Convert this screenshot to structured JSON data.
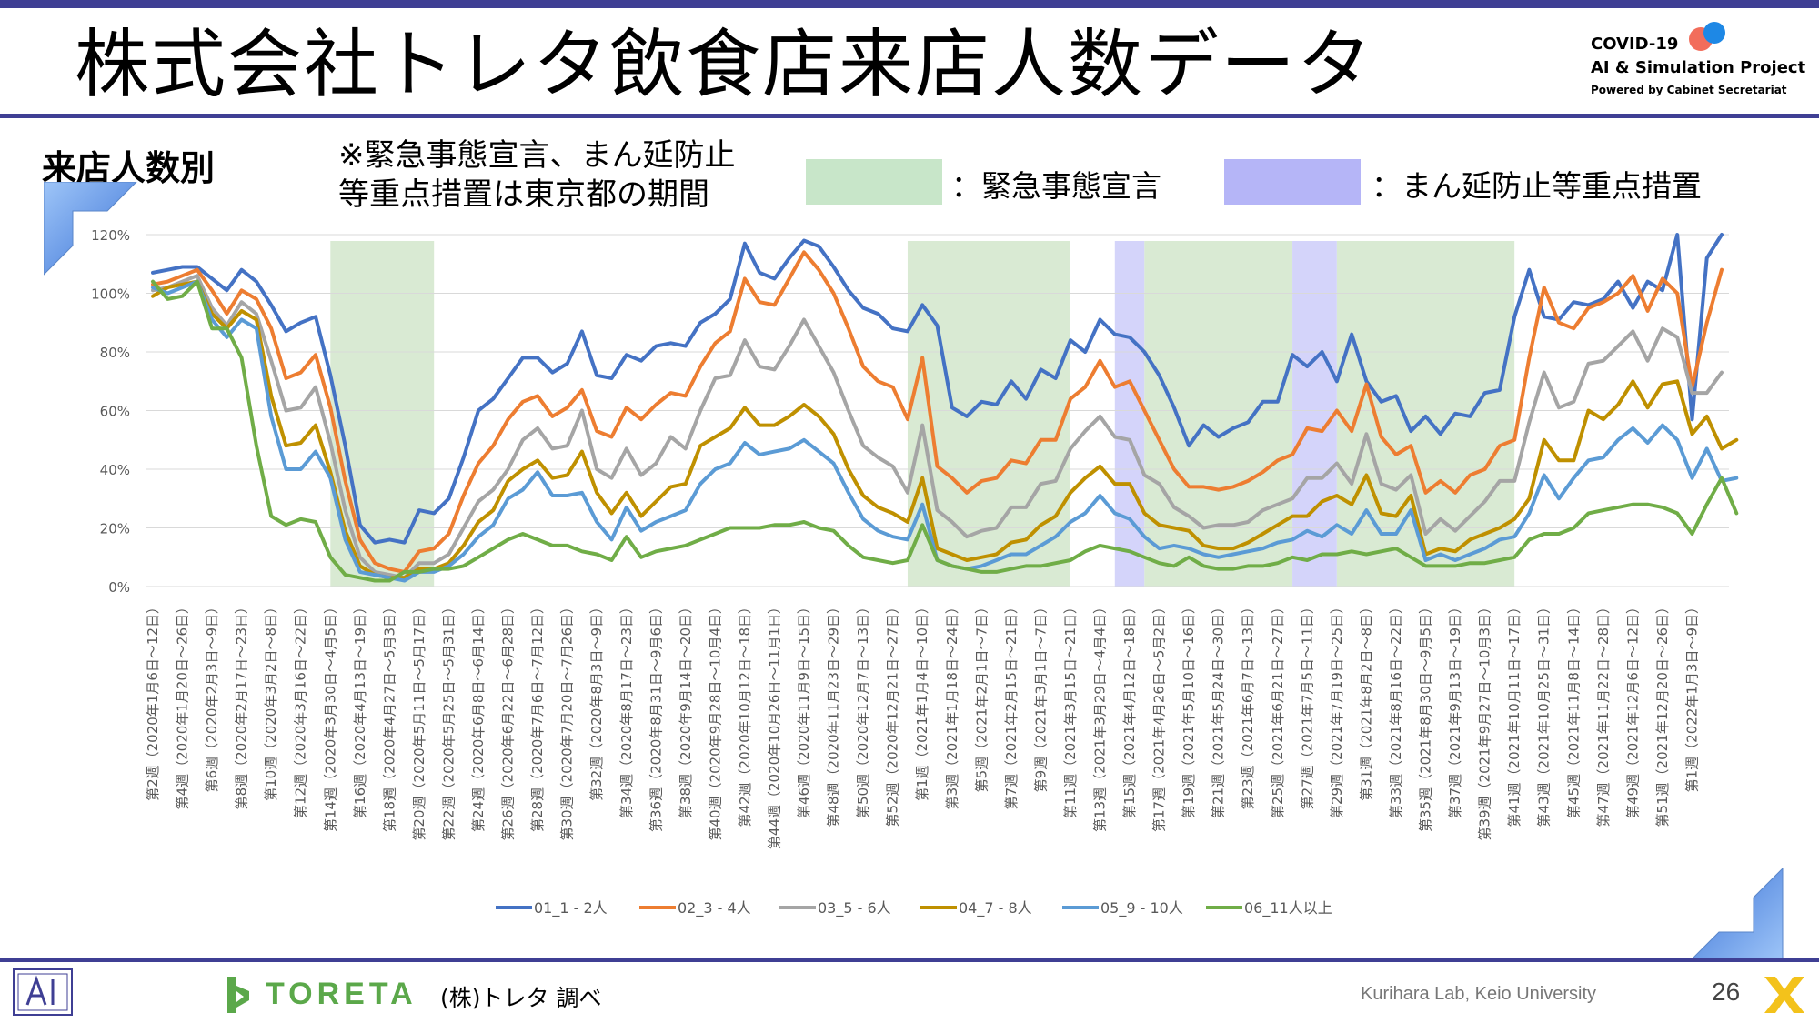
{
  "header": {
    "title": "株式会社トレタ飲食店来店人数データ",
    "logo_line1": "COVID-19",
    "logo_line2": "AI & Simulation Project",
    "logo_line3": "Powered by Cabinet Secretariat"
  },
  "section_label": "来店人数別",
  "note_line1": "※緊急事態宣言、まん延防止",
  "note_line2": "等重点措置は東京都の期間",
  "legend_green": "：緊急事態宣言",
  "legend_blue": "：まん延防止等重点措置",
  "footer": {
    "brand": "TORETA",
    "source": "(株)トレタ 調べ",
    "lab": "Kurihara Lab, Keio University",
    "page": "26"
  },
  "colors": {
    "series": [
      "#4472c4",
      "#ed7d31",
      "#a5a5a5",
      "#bf9000",
      "#5b9bd5",
      "#70ad47"
    ],
    "emergency": "#d9ead3",
    "semi_emergency": "#d4d4fa",
    "brand_green": "#5ba84a",
    "accent": "#3f3f94"
  },
  "chart_data": {
    "type": "line",
    "title": "",
    "ylim": [
      0,
      120
    ],
    "yticks": [
      "0%",
      "20%",
      "40%",
      "60%",
      "80%",
      "100%",
      "120%"
    ],
    "grid": true,
    "legend_position": "bottom",
    "x_labels": [
      "第2週（2020年1月6日～12日）",
      "第4週（2020年1月20日～26日）",
      "第6週（2020年2月3日～9日）",
      "第8週（2020年2月17日～23日）",
      "第10週（2020年3月2日～8日）",
      "第12週（2020年3月16日～22日）",
      "第14週（2020年3月30日～4月5日）",
      "第16週（2020年4月13日～19日）",
      "第18週（2020年4月27日～5月3日）",
      "第20週（2020年5月11日～5月17日）",
      "第22週（2020年5月25日～5月31日）",
      "第24週（2020年6月8日～6月14日）",
      "第26週（2020年6月22日～6月28日）",
      "第28週（2020年7月6日～7月12日）",
      "第30週（2020年7月20日～7月26日）",
      "第32週（2020年8月3日～9日）",
      "第34週（2020年8月17日～23日）",
      "第36週（2020年8月31日～9月6日）",
      "第38週（2020年9月14日～20日）",
      "第40週（2020年9月28日～10月4日）",
      "第42週（2020年10月12日～18日）",
      "第44週（2020年10月26日～11月1日）",
      "第46週（2020年11月9日～15日）",
      "第48週（2020年11月23日～29日）",
      "第50週（2020年12月7日～13日）",
      "第52週（2020年12月21日～27日）",
      "第1週（2021年1月4日～10日）",
      "第3週（2021年1月18日～24日）",
      "第5週（2021年2月1日～7日）",
      "第7週（2021年2月15日～21日）",
      "第9週（2021年3月1日～7日）",
      "第11週（2021年3月15日～21日）",
      "第13週（2021年3月29日～4月4日）",
      "第15週（2021年4月12日～18日）",
      "第17週（2021年4月26日～5月2日）",
      "第19週（2021年5月10日～16日）",
      "第21週（2021年5月24日～30日）",
      "第23週（2021年6月7日～13日）",
      "第25週（2021年6月21日～27日）",
      "第27週（2021年7月5日～11日）",
      "第29週（2021年7月19日～25日）",
      "第31週（2021年8月2日～8日）",
      "第33週（2021年8月16日～22日）",
      "第35週（2021年8月30日～9月5日）",
      "第37週（2021年9月13日～19日）",
      "第39週（2021年9月27日～10月3日）",
      "第41週（2021年10月11日～17日）",
      "第43週（2021年10月25日～31日）",
      "第45週（2021年11月8日～14日）",
      "第47週（2021年11月22日～28日）",
      "第49週（2021年12月6日～12日）",
      "第51週（2021年12月20日～26日）",
      "第1週（2022年1月3日～9日）"
    ],
    "periods": [
      {
        "type": "emergency",
        "start_week": 6.5,
        "end_week": 10.0
      },
      {
        "type": "emergency",
        "start_week": 26.0,
        "end_week": 31.5
      },
      {
        "type": "semi",
        "start_week": 33.0,
        "end_week": 34.0
      },
      {
        "type": "emergency",
        "start_week": 34.0,
        "end_week": 39.0
      },
      {
        "type": "semi",
        "start_week": 39.0,
        "end_week": 40.5
      },
      {
        "type": "emergency",
        "start_week": 40.5,
        "end_week": 46.5
      }
    ],
    "series": [
      {
        "name": "01_1 - 2人",
        "values": [
          107,
          108,
          109,
          109,
          105,
          101,
          108,
          104,
          96,
          87,
          90,
          92,
          72,
          48,
          21,
          15,
          16,
          15,
          26,
          25,
          30,
          44,
          60,
          64,
          71,
          78,
          78,
          73,
          76,
          87,
          72,
          71,
          79,
          77,
          82,
          83,
          82,
          90,
          93,
          98,
          117,
          107,
          105,
          112,
          118,
          116,
          109,
          101,
          95,
          93,
          88,
          87,
          96,
          89,
          61,
          58,
          63,
          62,
          70,
          64,
          74,
          71,
          84,
          80,
          91,
          86,
          85,
          80,
          72,
          61,
          48,
          55,
          51,
          54,
          56,
          63,
          63,
          79,
          75,
          80,
          70,
          86,
          70,
          63,
          65,
          53,
          58,
          52,
          59,
          58,
          66,
          67,
          92,
          108,
          92,
          91,
          97,
          96,
          98,
          104,
          95,
          104,
          101,
          120,
          57,
          112,
          120
        ]
      },
      {
        "name": "02_3 - 4人",
        "values": [
          103,
          104,
          106,
          108,
          101,
          93,
          101,
          98,
          88,
          71,
          73,
          79,
          61,
          36,
          16,
          8,
          6,
          5,
          12,
          13,
          18,
          31,
          42,
          48,
          57,
          63,
          65,
          58,
          61,
          67,
          53,
          51,
          61,
          57,
          62,
          66,
          65,
          75,
          83,
          87,
          105,
          97,
          96,
          105,
          114,
          108,
          100,
          88,
          75,
          70,
          68,
          57,
          78,
          41,
          37,
          32,
          36,
          37,
          43,
          42,
          50,
          50,
          64,
          68,
          77,
          68,
          70,
          60,
          50,
          40,
          34,
          34,
          33,
          34,
          36,
          39,
          43,
          45,
          54,
          53,
          60,
          53,
          69,
          51,
          45,
          48,
          32,
          36,
          32,
          38,
          40,
          48,
          50,
          78,
          102,
          90,
          88,
          95,
          97,
          100,
          106,
          94,
          105,
          100,
          68,
          90,
          108
        ]
      },
      {
        "name": "03_5 - 6人",
        "values": [
          101,
          102,
          104,
          106,
          95,
          89,
          97,
          93,
          77,
          60,
          61,
          68,
          49,
          26,
          10,
          5,
          4,
          3,
          8,
          8,
          11,
          20,
          29,
          33,
          40,
          50,
          54,
          47,
          48,
          60,
          40,
          37,
          47,
          38,
          42,
          51,
          47,
          60,
          71,
          72,
          84,
          75,
          74,
          82,
          91,
          82,
          73,
          60,
          48,
          44,
          41,
          32,
          55,
          26,
          22,
          17,
          19,
          20,
          27,
          27,
          35,
          36,
          47,
          53,
          58,
          51,
          50,
          38,
          35,
          27,
          24,
          20,
          21,
          21,
          22,
          26,
          28,
          30,
          37,
          37,
          42,
          35,
          52,
          35,
          33,
          38,
          18,
          23,
          19,
          24,
          29,
          36,
          36,
          56,
          73,
          61,
          63,
          76,
          77,
          82,
          87,
          77,
          88,
          85,
          66,
          66,
          73
        ]
      },
      {
        "name": "04_7 - 8人",
        "values": [
          99,
          102,
          103,
          104,
          93,
          88,
          94,
          91,
          65,
          48,
          49,
          55,
          39,
          19,
          7,
          4,
          3,
          3,
          6,
          6,
          8,
          14,
          22,
          26,
          36,
          40,
          43,
          37,
          38,
          46,
          32,
          25,
          32,
          24,
          29,
          34,
          35,
          48,
          51,
          54,
          61,
          55,
          55,
          58,
          62,
          58,
          52,
          40,
          31,
          27,
          25,
          22,
          37,
          13,
          11,
          9,
          10,
          11,
          15,
          16,
          21,
          24,
          32,
          37,
          41,
          35,
          35,
          25,
          21,
          20,
          19,
          14,
          13,
          13,
          15,
          18,
          21,
          24,
          24,
          29,
          31,
          28,
          38,
          25,
          24,
          31,
          11,
          13,
          12,
          16,
          18,
          20,
          23,
          30,
          50,
          43,
          43,
          60,
          57,
          62,
          70,
          61,
          69,
          70,
          52,
          58,
          47,
          50
        ]
      },
      {
        "name": "05_9 - 10人",
        "values": [
          102,
          100,
          102,
          104,
          91,
          85,
          91,
          88,
          58,
          40,
          40,
          46,
          37,
          16,
          5,
          4,
          3,
          2,
          5,
          5,
          7,
          11,
          17,
          21,
          30,
          33,
          39,
          31,
          31,
          32,
          22,
          16,
          27,
          19,
          22,
          24,
          26,
          35,
          40,
          42,
          49,
          45,
          46,
          47,
          50,
          46,
          42,
          32,
          23,
          19,
          17,
          16,
          28,
          9,
          7,
          6,
          7,
          9,
          11,
          11,
          14,
          17,
          22,
          25,
          31,
          25,
          23,
          17,
          13,
          14,
          13,
          11,
          10,
          11,
          12,
          13,
          15,
          16,
          19,
          17,
          21,
          18,
          26,
          18,
          18,
          26,
          9,
          11,
          9,
          11,
          13,
          16,
          17,
          25,
          38,
          30,
          37,
          43,
          44,
          50,
          54,
          49,
          55,
          50,
          37,
          47,
          36,
          37
        ]
      },
      {
        "name": "06_11人以上",
        "values": [
          104,
          98,
          99,
          104,
          88,
          88,
          78,
          48,
          24,
          21,
          23,
          22,
          10,
          4,
          3,
          2,
          2,
          5,
          5,
          6,
          6,
          7,
          10,
          13,
          16,
          18,
          16,
          14,
          14,
          12,
          11,
          9,
          17,
          10,
          12,
          13,
          14,
          16,
          18,
          20,
          20,
          20,
          21,
          21,
          22,
          20,
          19,
          14,
          10,
          9,
          8,
          9,
          21,
          9,
          7,
          6,
          5,
          5,
          6,
          7,
          7,
          8,
          9,
          12,
          14,
          13,
          12,
          10,
          8,
          7,
          10,
          7,
          6,
          6,
          7,
          7,
          8,
          10,
          9,
          11,
          11,
          12,
          11,
          12,
          13,
          10,
          7,
          7,
          7,
          8,
          8,
          9,
          10,
          16,
          18,
          18,
          20,
          25,
          26,
          27,
          28,
          28,
          27,
          25,
          18,
          28,
          37,
          25
        ]
      }
    ]
  }
}
